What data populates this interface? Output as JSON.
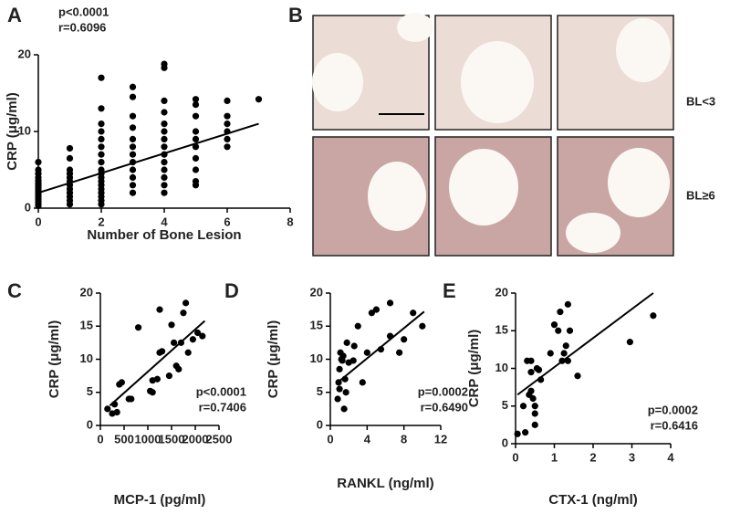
{
  "chart_data": [
    {
      "type": "scatter",
      "panel": "A",
      "x_label": "Number of Bone Lesion",
      "y_label": "CRP (μg/ml)",
      "annotations": [
        "p<0.0001",
        "r=0.6096"
      ],
      "annotation_corner": "top-left",
      "xlim": [
        0,
        8
      ],
      "xticks": [
        0,
        2,
        4,
        6,
        8
      ],
      "ylim": [
        0,
        20
      ],
      "yticks": [
        0,
        10,
        20
      ],
      "color": "#000000",
      "x": [
        0,
        0,
        0,
        0,
        0,
        0,
        0,
        0,
        0,
        0,
        0,
        0,
        0,
        0,
        0,
        0,
        1,
        1,
        1,
        1,
        1,
        1,
        1,
        1,
        1,
        1,
        1,
        1,
        2,
        2,
        2,
        2,
        2,
        2,
        2,
        2,
        2,
        2,
        2,
        2,
        2,
        2,
        2,
        2,
        2,
        2,
        3,
        3,
        3,
        3,
        3,
        3,
        3,
        3,
        3,
        3,
        3,
        3,
        4,
        4,
        4,
        4,
        4,
        4,
        4,
        4,
        4,
        4,
        4,
        4,
        4,
        4,
        5,
        5,
        5,
        5,
        5,
        5,
        5,
        5,
        5,
        5,
        6,
        6,
        6,
        6,
        6,
        6,
        7
      ],
      "y": [
        0.3,
        0.6,
        0.9,
        1.2,
        1.5,
        1.8,
        2.1,
        2.4,
        2.7,
        3,
        3.3,
        3.6,
        4,
        4.5,
        5,
        6,
        0.5,
        1,
        1.5,
        2,
        2.5,
        3,
        3.5,
        4,
        4.5,
        5,
        6.5,
        7.8,
        0.5,
        1,
        1.5,
        2,
        2.5,
        3,
        3.5,
        4,
        4.5,
        5,
        6,
        7,
        8,
        9,
        10,
        11,
        13,
        17,
        2,
        3,
        4,
        5,
        6,
        7,
        8,
        9,
        10.5,
        12,
        14.5,
        15.8,
        2,
        3,
        4,
        5,
        6,
        7,
        8,
        9,
        10,
        11,
        12.5,
        14,
        18.3,
        18.8,
        3,
        3.5,
        5,
        6.5,
        8,
        9,
        10,
        12,
        13.5,
        14.2,
        8,
        9,
        10,
        11,
        12,
        14,
        14.2
      ],
      "fit": {
        "x": [
          0,
          7
        ],
        "y": [
          2,
          11
        ]
      }
    },
    {
      "type": "scatter",
      "panel": "C",
      "x_label": "MCP-1 (pg/ml)",
      "y_label": "CRP (μg/ml)",
      "annotations": [
        "p<0.0001",
        "r=0.7406"
      ],
      "annotation_corner": "bottom-right",
      "xlim": [
        0,
        2500
      ],
      "xticks": [
        0,
        500,
        1000,
        1500,
        2000,
        2500
      ],
      "ylim": [
        0,
        20
      ],
      "yticks": [
        0,
        5,
        10,
        15,
        20
      ],
      "color": "#000000",
      "x": [
        150,
        250,
        300,
        350,
        400,
        450,
        600,
        650,
        800,
        1050,
        1100,
        1100,
        1200,
        1250,
        1250,
        1300,
        1450,
        1500,
        1550,
        1600,
        1650,
        1700,
        1750,
        1800,
        1850,
        1950,
        2050,
        2150
      ],
      "y": [
        2.5,
        1.8,
        3.2,
        2,
        6.2,
        6.5,
        4,
        4,
        14.8,
        5.2,
        6.8,
        5,
        7,
        17.5,
        11,
        11.2,
        7.5,
        15.2,
        12.5,
        9,
        8.5,
        12.5,
        17,
        18.5,
        11,
        13,
        14,
        13.5
      ],
      "fit": {
        "x": [
          200,
          2200
        ],
        "y": [
          3,
          15.8
        ]
      }
    },
    {
      "type": "scatter",
      "panel": "D",
      "x_label": "RANKL (ng/ml)",
      "y_label": "CRP (μg/ml)",
      "annotations": [
        "p=0.0002",
        "r=0.6490"
      ],
      "annotation_corner": "bottom-right",
      "xlim": [
        0,
        12
      ],
      "xticks": [
        0,
        4,
        8,
        12
      ],
      "ylim": [
        0,
        20
      ],
      "yticks": [
        0,
        5,
        10,
        15,
        20
      ],
      "color": "#000000",
      "x": [
        0.8,
        0.9,
        1,
        1,
        1.1,
        1.2,
        1.3,
        1.4,
        1.5,
        1.6,
        1.7,
        1.8,
        2,
        2.5,
        2.6,
        3,
        3.5,
        4,
        4.5,
        5,
        5.5,
        6.5,
        6.5,
        7.5,
        8,
        9,
        10
      ],
      "y": [
        4,
        6.5,
        8.5,
        5.5,
        11,
        10,
        9.8,
        10.5,
        2.5,
        7,
        5,
        12.5,
        9.5,
        9.8,
        12,
        15,
        6.5,
        11,
        17,
        17.5,
        11.5,
        18.5,
        13.5,
        11,
        13,
        17,
        15
      ],
      "fit": {
        "x": [
          0.8,
          10.2
        ],
        "y": [
          6.5,
          17.2
        ]
      }
    },
    {
      "type": "scatter",
      "panel": "E",
      "x_label": "CTX-1 (ng/ml)",
      "y_label": "CRP (μg/ml)",
      "annotations": [
        "p=0.0002",
        "r=0.6416"
      ],
      "annotation_corner": "bottom-right",
      "xlim": [
        0,
        4
      ],
      "xticks": [
        0,
        1,
        2,
        3,
        4
      ],
      "ylim": [
        0,
        20
      ],
      "yticks": [
        0,
        5,
        10,
        15,
        20
      ],
      "color": "#000000",
      "x": [
        0.05,
        0.2,
        0.25,
        0.3,
        0.35,
        0.4,
        0.4,
        0.4,
        0.45,
        0.5,
        0.5,
        0.5,
        0.55,
        0.6,
        0.65,
        0.9,
        1,
        1.1,
        1.15,
        1.2,
        1.25,
        1.3,
        1.35,
        1.35,
        1.4,
        1.6,
        2.95,
        3.55
      ],
      "y": [
        1.3,
        5,
        1.5,
        11,
        6.5,
        9.5,
        7,
        11,
        6,
        5,
        2.5,
        4,
        10,
        9.8,
        8.5,
        12,
        15.8,
        15,
        17.5,
        11,
        12,
        13,
        18.5,
        11,
        15,
        9,
        13.5,
        17
      ],
      "fit": {
        "x": [
          0.05,
          3.55
        ],
        "y": [
          6.5,
          20
        ]
      }
    }
  ],
  "image_panel": {
    "panel": "B",
    "row_labels": [
      "BL<3",
      "BL≥6"
    ]
  }
}
